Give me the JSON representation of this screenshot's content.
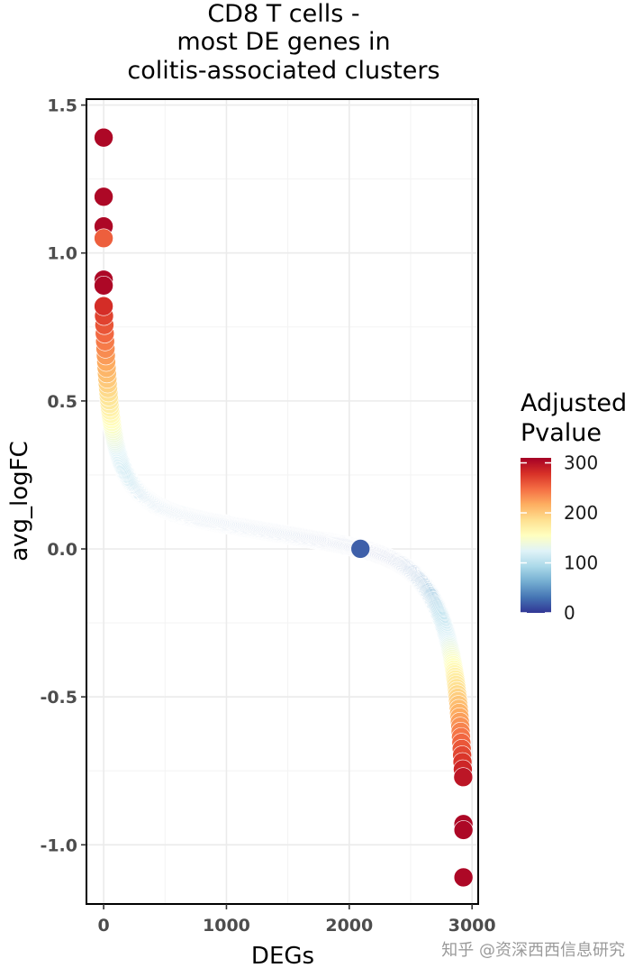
{
  "chart_data": {
    "type": "scatter",
    "title": [
      "CD8 T cells -",
      "most DE genes in",
      "colitis-associated clusters"
    ],
    "xlabel": "DEGs",
    "ylabel": "avg_logFC",
    "xlim": [
      -140,
      3050
    ],
    "ylim": [
      -1.2,
      1.52
    ],
    "x_ticks": [
      0,
      1000,
      2000,
      3000
    ],
    "x_tick_labels": [
      "0",
      "1000",
      "2000",
      "3000"
    ],
    "y_ticks": [
      -1.0,
      -0.5,
      0.0,
      0.5,
      1.0,
      1.5
    ],
    "y_tick_labels": [
      "-1.0",
      "-0.5",
      "0.0",
      "0.5",
      "1.0",
      "1.5"
    ],
    "grid": true,
    "legend": {
      "title": [
        "Adjusted",
        "Pvalue"
      ],
      "position": "right",
      "labels": [
        "300",
        "200",
        "100",
        "0"
      ],
      "values": [
        300,
        200,
        100,
        0
      ],
      "range": [
        0,
        310
      ],
      "colorscale": [
        "#313695",
        "#4575b4",
        "#74add1",
        "#abd9e9",
        "#e0f3f8",
        "#ffffbf",
        "#fee090",
        "#fdae61",
        "#f46d43",
        "#d73027",
        "#a50026"
      ]
    },
    "highlighted_points": [
      {
        "x": 0,
        "y": 1.39,
        "p": 305
      },
      {
        "x": 0,
        "y": 1.19,
        "p": 305
      },
      {
        "x": 0,
        "y": 1.09,
        "p": 305
      },
      {
        "x": 0,
        "y": 1.05,
        "p": 255
      },
      {
        "x": 0,
        "y": 0.91,
        "p": 305
      },
      {
        "x": 0,
        "y": 0.89,
        "p": 305
      },
      {
        "x": 2930,
        "y": -0.93,
        "p": 305
      },
      {
        "x": 2930,
        "y": -0.95,
        "p": 305
      },
      {
        "x": 2930,
        "y": -1.11,
        "p": 305
      }
    ],
    "curve": {
      "n_genes": 2930,
      "x_range": [
        0,
        2930
      ],
      "y_start": 0.77,
      "y_end": -0.73,
      "y_mid_plateau": 0.05,
      "description": "sorted avg_logFC by rank: steep drop to ~0.2 by rank 250, slow decline through ~0 around rank 2500, steep drop to ~-0.73 at rank 2930"
    }
  },
  "watermark": {
    "text": "知乎 @资深西西信息研究"
  }
}
